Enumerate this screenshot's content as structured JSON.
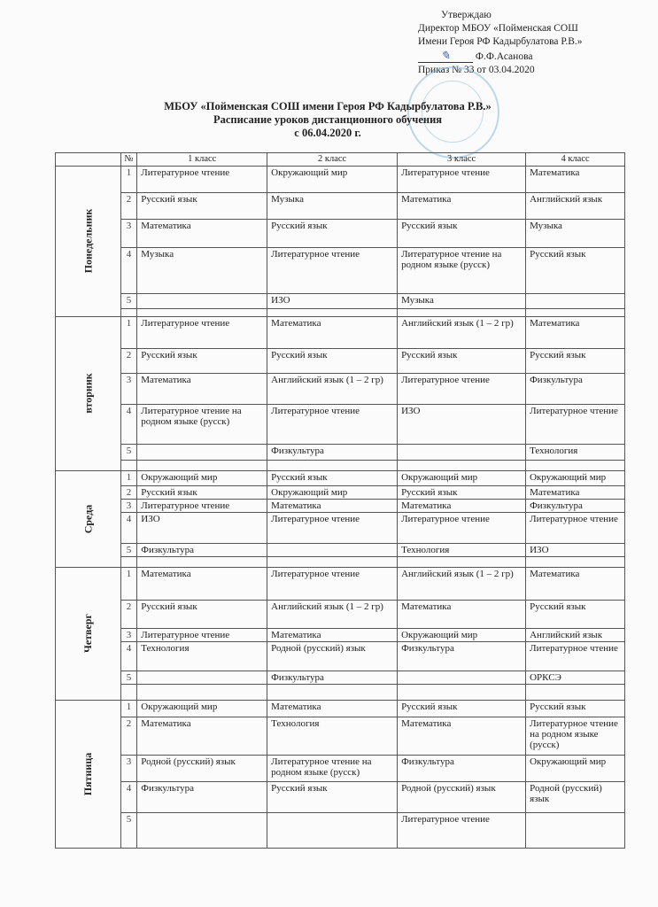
{
  "approval": {
    "line1": "Утверждаю",
    "line2": "Директор  МБОУ «Пойменская СОШ",
    "line3": "Имени   Героя РФ  Кадырбулатова Р.В.»",
    "signature": "Ф.Ф.Асанова",
    "line5": "Приказ  №   33  от  03.04.2020"
  },
  "title": {
    "school": "МБОУ «Пойменская СОШ имени Героя РФ Кадырбулатова Р.В.»",
    "subtitle": "Расписание уроков  дистанционного обучения",
    "date": "с  06.04.2020 г."
  },
  "table": {
    "headers": [
      "№",
      "1 класс",
      "2 класс",
      "3 класс",
      "4 класс"
    ],
    "days": [
      {
        "name": "Понедельник",
        "rows": [
          [
            "1",
            "Литературное чтение",
            "Окружающий мир",
            "Литературное чтение",
            "Математика"
          ],
          [
            "2",
            "Русский язык",
            "Музыка",
            "Математика",
            "Английский язык"
          ],
          [
            "3",
            "Математика",
            "Русский язык",
            "Русский  язык",
            "Музыка"
          ],
          [
            "4",
            "Музыка",
            "Литературное чтение",
            "Литературное чтение на  родном языке (русск)",
            "Русский язык"
          ],
          [
            "5",
            "",
            "ИЗО",
            "Музыка",
            ""
          ]
        ]
      },
      {
        "name": "вторник",
        "rows": [
          [
            "1",
            "Литературное чтение",
            "Математика",
            "Английский язык (1 – 2 гр)",
            "Математика"
          ],
          [
            "2",
            "Русский язык",
            "Русский язык",
            "Русский язык",
            "Русский  язык"
          ],
          [
            "3",
            "Математика",
            "Английский язык (1 – 2 гр)",
            "Литературное чтение",
            "Физкультура"
          ],
          [
            "4",
            "Литературное  чтение на  родном языке (русск)",
            "Литературное чтение",
            "ИЗО",
            "Литературное чтение"
          ],
          [
            "5",
            "",
            "Физкультура",
            "",
            "Технология"
          ]
        ]
      },
      {
        "name": "Среда",
        "rows": [
          [
            "1",
            "Окружающий мир",
            "Русский язык",
            "Окружающий мир",
            "Окружающий мир"
          ],
          [
            "2",
            "Русский язык",
            "Окружающий мир",
            "Русский  язык",
            "Математика"
          ],
          [
            "3",
            "Литературное чтение",
            "Математика",
            "Математика",
            "Физкультура"
          ],
          [
            "4",
            "ИЗО",
            "Литературное чтение",
            "Литературное чтение",
            "Литературное чтение"
          ],
          [
            "5",
            "Физкультура",
            "",
            "Технология",
            "ИЗО"
          ]
        ]
      },
      {
        "name": "Четверг",
        "rows": [
          [
            "1",
            "Математика",
            "Литературное чтение",
            "Английский язык (1 – 2 гр)",
            "Математика"
          ],
          [
            "2",
            "Русский язык",
            "Английский язык (1 – 2 гр)",
            "Математика",
            "Русский  язык"
          ],
          [
            "3",
            "Литературное чтение",
            "Математика",
            "Окружающий мир",
            "Английский язык"
          ],
          [
            "4",
            "Технология",
            "Родной (русский) язык",
            "Физкультура",
            "Литературное чтение"
          ],
          [
            "5",
            "",
            "Физкультура",
            "",
            "ОРКСЭ"
          ]
        ]
      },
      {
        "name": "Пятница",
        "rows": [
          [
            "1",
            "Окружающий мир",
            "Математика",
            "Русский язык",
            "Русский язык"
          ],
          [
            "2",
            "Математика",
            "Технология",
            "Математика",
            "Литературное чтение на  родном языке (русск)"
          ],
          [
            "3",
            "Родной (русский) язык",
            "Литературное  чтение на родном языке (русск)",
            "Физкультура",
            "Окружающий мир"
          ],
          [
            "4",
            "Физкультура",
            "Русский язык",
            "Родной (русский) язык",
            "Родной (русский) язык"
          ],
          [
            "5",
            "",
            "",
            "Литературное чтение",
            ""
          ]
        ]
      }
    ]
  }
}
